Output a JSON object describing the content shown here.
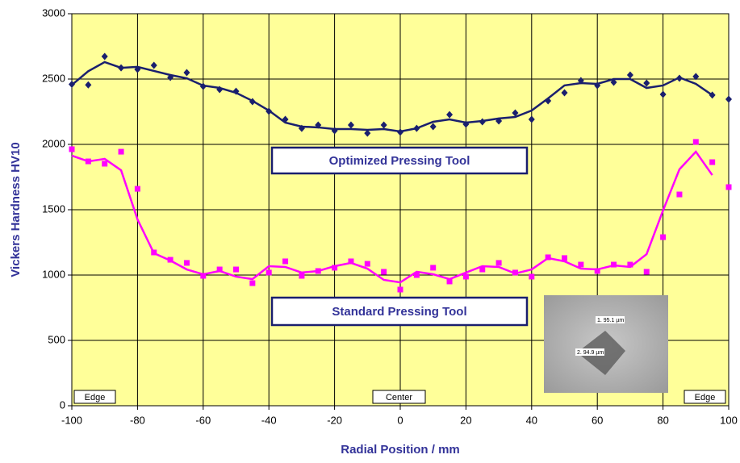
{
  "chart_data": {
    "type": "scatter",
    "xlabel": "Radial Position / mm",
    "ylabel": "Vickers Hardness HV10",
    "xlim": [
      -100,
      100
    ],
    "ylim": [
      0,
      3000
    ],
    "xticks": [
      -100,
      -80,
      -60,
      -40,
      -20,
      0,
      20,
      40,
      60,
      80,
      100
    ],
    "yticks": [
      0,
      500,
      1000,
      1500,
      2000,
      2500,
      3000
    ],
    "grid": true,
    "x": [
      -100,
      -95,
      -90,
      -85,
      -80,
      -75,
      -70,
      -65,
      -60,
      -55,
      -50,
      -45,
      -40,
      -35,
      -30,
      -25,
      -20,
      -15,
      -10,
      -5,
      0,
      5,
      10,
      15,
      20,
      25,
      30,
      35,
      40,
      45,
      50,
      55,
      60,
      65,
      70,
      75,
      80,
      85,
      90,
      95,
      100
    ],
    "series": [
      {
        "color": "#1a1f6e",
        "marker": "diamond",
        "values": [
          2460,
          2455,
          2673,
          2586,
          2574,
          2605,
          2512,
          2549,
          2444,
          2420,
          2407,
          2327,
          2253,
          2191,
          2123,
          2148,
          2105,
          2148,
          2086,
          2148,
          2093,
          2123,
          2136,
          2228,
          2154,
          2173,
          2179,
          2241,
          2191,
          2333,
          2395,
          2488,
          2451,
          2475,
          2531,
          2469,
          2383,
          2506,
          2519,
          2377,
          2346
        ],
        "trend": [
          2455,
          2560,
          2630,
          2586,
          2593,
          2562,
          2531,
          2506,
          2450,
          2432,
          2395,
          2333,
          2259,
          2167,
          2136,
          2130,
          2117,
          2117,
          2111,
          2117,
          2099,
          2123,
          2173,
          2191,
          2167,
          2179,
          2198,
          2210,
          2259,
          2352,
          2451,
          2469,
          2463,
          2500,
          2500,
          2432,
          2451,
          2512,
          2463,
          2377,
          null
        ]
      },
      {
        "color": "#ff00ff",
        "marker": "square",
        "values": [
          1963,
          1870,
          1852,
          1944,
          1660,
          1173,
          1117,
          1093,
          994,
          1043,
          1043,
          938,
          1019,
          1105,
          994,
          1031,
          1056,
          1105,
          1086,
          1025,
          889,
          1000,
          1056,
          951,
          988,
          1043,
          1093,
          1019,
          988,
          1136,
          1130,
          1080,
          1031,
          1080,
          1080,
          1025,
          1290,
          1617,
          2019,
          1864,
          1673
        ],
        "trend": [
          1914,
          1870,
          1889,
          1802,
          1426,
          1167,
          1111,
          1043,
          1006,
          1031,
          988,
          969,
          1068,
          1062,
          1019,
          1031,
          1068,
          1093,
          1049,
          963,
          944,
          1025,
          1006,
          969,
          1019,
          1068,
          1062,
          1012,
          1043,
          1130,
          1105,
          1049,
          1043,
          1074,
          1062,
          1160,
          1494,
          1809,
          1944,
          1765,
          null
        ]
      }
    ],
    "annotations": [
      "Optimized Pressing Tool",
      "Standard Pressing Tool",
      "Edge",
      "Center",
      "Edge"
    ],
    "inset_labels": [
      "1. 95.1 µm",
      "2. 94.9 µm"
    ]
  }
}
